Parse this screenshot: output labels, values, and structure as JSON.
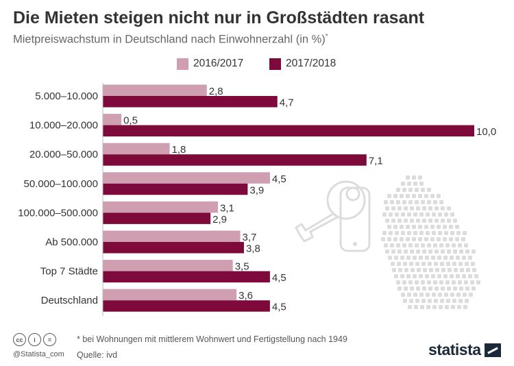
{
  "title": "Die Mieten steigen nicht nur in Großstädten rasant",
  "subtitle": "Mietpreiswachstum in Deutschland nach Einwohnerzahl (in %)",
  "subtitle_marker": "*",
  "footnote": "* bei Wohnungen mit mittlerem Wohnwert und Fertigstellung nach 1949",
  "source": "Quelle: ivd",
  "credit": "@Statista_com",
  "logo": "statista",
  "license_icons": [
    "cc",
    "i",
    "="
  ],
  "colors": {
    "series_2016": "#cf9fb1",
    "series_2018": "#7d0a3a",
    "axis": "#bbbbbb",
    "decor": "#dcdcdc"
  },
  "chart_data": {
    "type": "bar",
    "orientation": "horizontal",
    "categories": [
      "5.000–10.000",
      "10.000–20.000",
      "20.000–50.000",
      "50.000–100.000",
      "100.000–500.000",
      "Ab 500.000",
      "Top 7 Städte",
      "Deutschland"
    ],
    "series": [
      {
        "name": "2016/2017",
        "values": [
          2.8,
          0.5,
          1.8,
          4.5,
          3.1,
          3.7,
          3.5,
          3.6
        ],
        "labels": [
          "2,8",
          "0,5",
          "1,8",
          "4,5",
          "3,1",
          "3,7",
          "3,5",
          "3,6"
        ]
      },
      {
        "name": "2017/2018",
        "values": [
          4.7,
          10.0,
          7.1,
          3.9,
          2.9,
          3.8,
          4.5,
          4.5
        ],
        "labels": [
          "4,7",
          "10,0",
          "7,1",
          "3,9",
          "2,9",
          "3,8",
          "4,5",
          "4,5"
        ]
      }
    ],
    "xlim": [
      0,
      10
    ],
    "legend": "top-center",
    "grid": false
  }
}
